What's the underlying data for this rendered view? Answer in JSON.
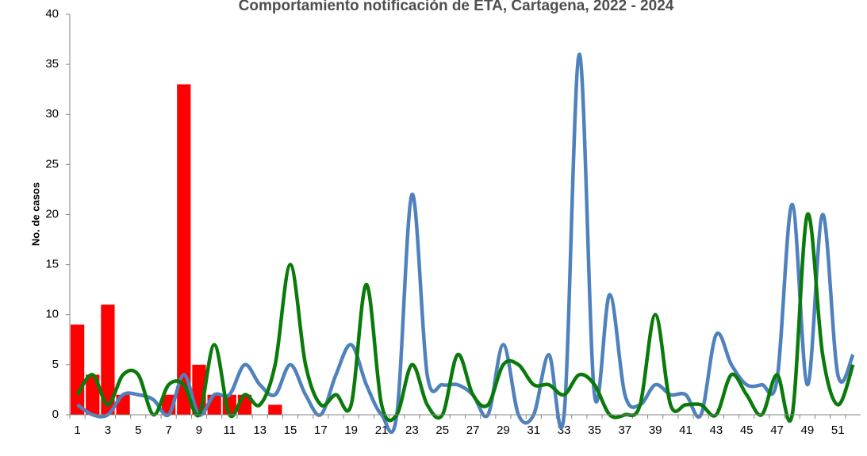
{
  "chart_data": {
    "type": "bar-line",
    "title": "Comportamiento notificación de ETA, Cartagena, 2022 - 2024",
    "y_label": "No. de casos",
    "categories": [
      1,
      null,
      3,
      null,
      5,
      null,
      7,
      null,
      9,
      null,
      11,
      null,
      13,
      null,
      15,
      null,
      17,
      null,
      19,
      null,
      21,
      null,
      23,
      null,
      25,
      null,
      27,
      null,
      29,
      null,
      31,
      null,
      33,
      null,
      35,
      null,
      37,
      null,
      39,
      null,
      41,
      null,
      43,
      null,
      45,
      null,
      47,
      null,
      49,
      null,
      51,
      null
    ],
    "ylim": [
      0,
      40
    ],
    "yticks": [
      0,
      5,
      10,
      15,
      20,
      25,
      30,
      35,
      40
    ],
    "series": [
      {
        "type": "bar",
        "color": "#ff0000",
        "values": [
          9,
          4,
          11,
          2,
          0,
          0,
          2,
          33,
          5,
          2,
          2,
          2,
          0,
          1,
          null,
          null,
          null,
          null,
          null,
          null,
          null,
          null,
          null,
          null,
          null,
          null,
          null,
          null,
          null,
          null,
          null,
          null,
          null,
          null,
          null,
          null,
          null,
          null,
          null,
          null,
          null,
          null,
          null,
          null,
          null,
          null,
          null,
          null,
          null,
          null,
          null,
          null
        ]
      },
      {
        "type": "line",
        "color": "#4f81bd",
        "values": [
          1,
          0,
          0,
          2,
          2,
          1.5,
          0,
          4,
          0,
          2,
          2,
          5,
          3,
          2,
          5,
          2,
          0,
          4,
          7,
          3,
          0,
          0,
          22,
          4,
          3,
          3,
          2,
          0,
          7,
          0,
          0,
          6,
          0,
          36,
          2,
          12,
          2,
          1,
          3,
          2,
          2,
          0,
          8,
          5,
          3,
          3,
          3.5,
          21,
          3,
          20,
          4,
          6
        ]
      },
      {
        "type": "line",
        "color": "#0a7a0a",
        "values": [
          2,
          4,
          1,
          4,
          4,
          0,
          3,
          3,
          0,
          7,
          0,
          2,
          1,
          5,
          15,
          5,
          1,
          2,
          1,
          13,
          1,
          0,
          5,
          1,
          0,
          6,
          2,
          1,
          5,
          5,
          3,
          3,
          2,
          4,
          3,
          0,
          0,
          1,
          10,
          1,
          1,
          1,
          0,
          4,
          2,
          0,
          4,
          0,
          20,
          6,
          1,
          5
        ]
      }
    ]
  }
}
